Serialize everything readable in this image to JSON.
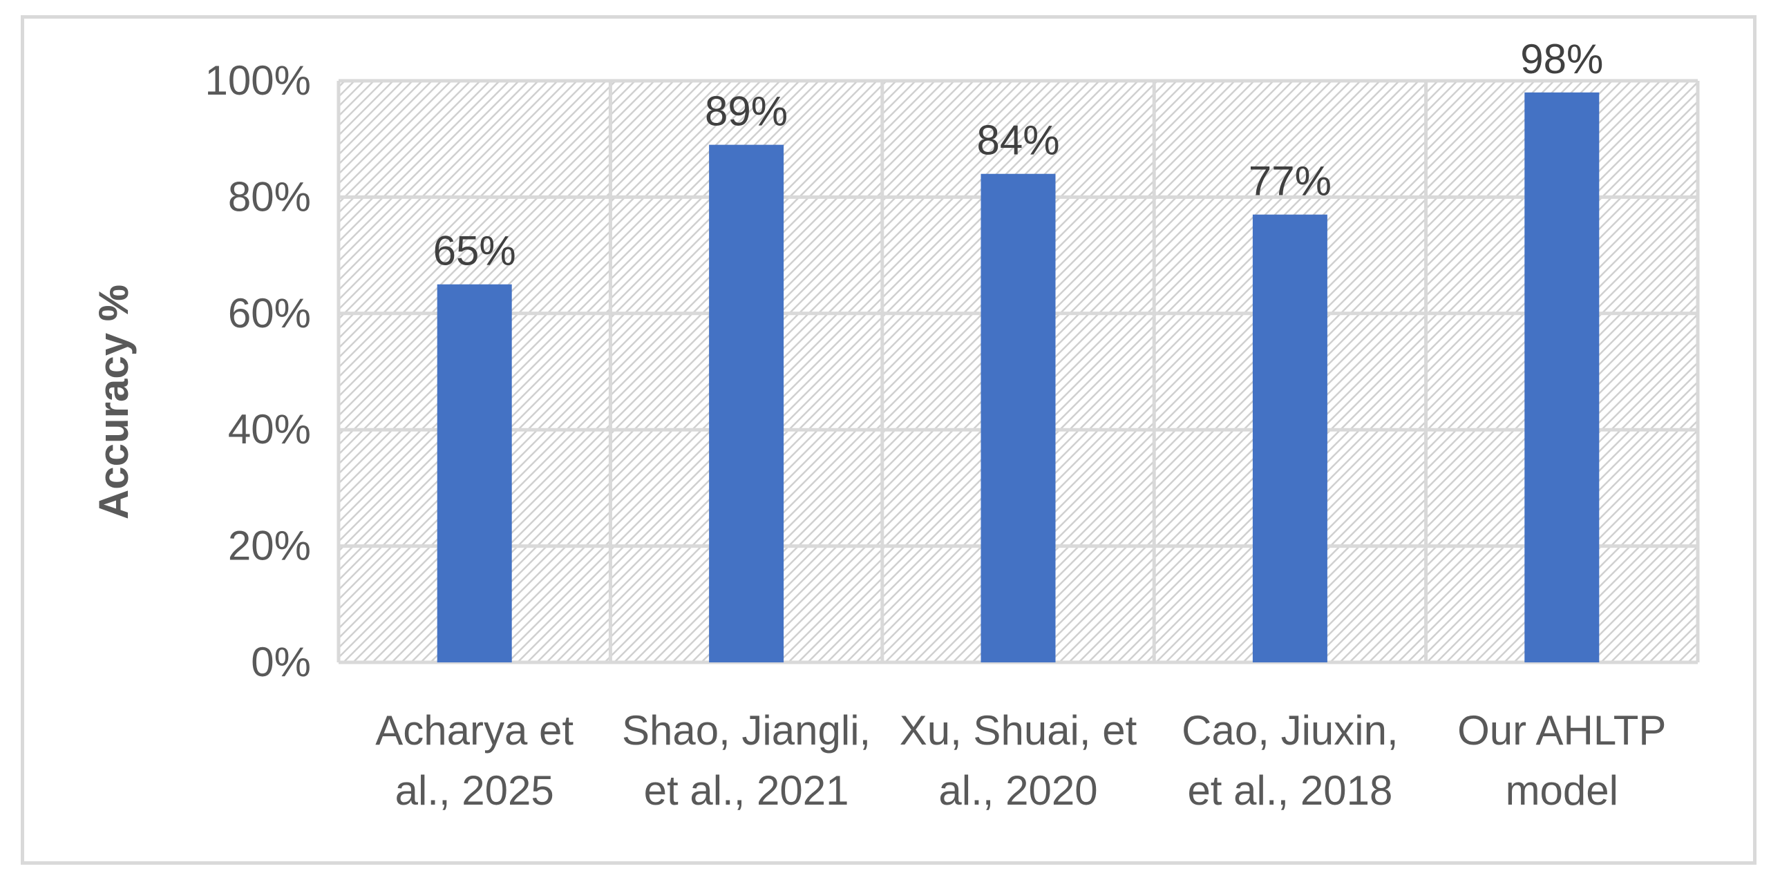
{
  "chart_data": {
    "type": "bar",
    "title": "",
    "xlabel": "",
    "ylabel": "Accuracy %",
    "categories": [
      [
        "Acharya et",
        "al., 2025"
      ],
      [
        "Shao, Jiangli,",
        "et al., 2021"
      ],
      [
        "Xu, Shuai, et",
        "al., 2020"
      ],
      [
        "Cao, Jiuxin,",
        "et al., 2018"
      ],
      [
        "Our AHLTP",
        "model"
      ]
    ],
    "values": [
      65,
      89,
      84,
      77,
      98
    ],
    "data_labels": [
      "65%",
      "89%",
      "84%",
      "77%",
      "98%"
    ],
    "yticks": [
      "0%",
      "20%",
      "40%",
      "60%",
      "80%",
      "100%"
    ],
    "ytick_values": [
      0,
      20,
      40,
      60,
      80,
      100
    ],
    "ylim": [
      0,
      100
    ],
    "grid": true,
    "legend": "none",
    "colors": {
      "bar": "#4472c4",
      "gridline": "#d9d9d9",
      "plot_hatch": "#d0d0d0",
      "tick_text": "#595959",
      "label_text": "#404040"
    }
  }
}
